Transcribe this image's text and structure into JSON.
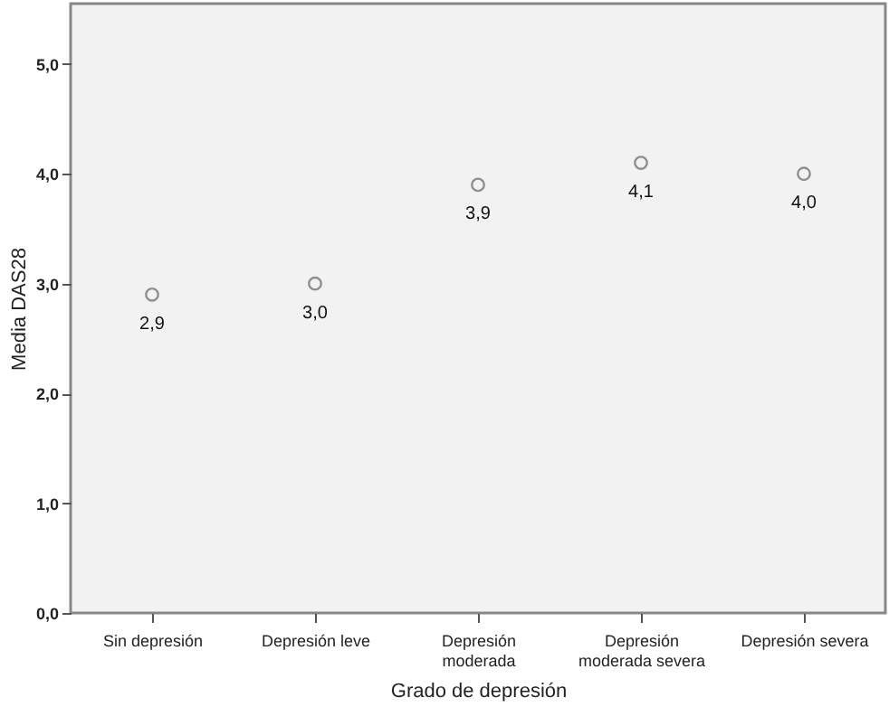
{
  "chart_data": {
    "type": "scatter",
    "xlabel": "Grado de depresión",
    "ylabel": "Media DAS28",
    "categories": [
      "Sin depresión",
      "Depresión leve",
      "Depresión moderada",
      "Depresión moderada severa",
      "Depresión severa"
    ],
    "values": [
      2.9,
      3.0,
      3.9,
      4.1,
      4.0
    ],
    "value_labels": [
      "2,9",
      "3,0",
      "3,9",
      "4,1",
      "4,0"
    ],
    "color": "#666666",
    "marker": "circle",
    "grid": false,
    "ylim": [
      0,
      5.55
    ],
    "yticks": [
      {
        "value": 0,
        "label": "0,0"
      },
      {
        "value": 1,
        "label": "1,0"
      },
      {
        "value": 2,
        "label": "2,0"
      },
      {
        "value": 3,
        "label": "3,0"
      },
      {
        "value": 4,
        "label": "4,0"
      },
      {
        "value": 5,
        "label": "5,0"
      }
    ]
  }
}
